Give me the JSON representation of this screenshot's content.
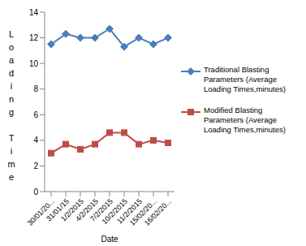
{
  "chart_data": {
    "type": "line",
    "x_label": "Date",
    "y_label": "Loading Time",
    "categories": [
      "30/01/20...",
      "31/01/15",
      "1/2/2015",
      "4/2/2015",
      "7/2/2015",
      "10/2/2015",
      "11/2/2015",
      "15/02/20...",
      "16/02/20..."
    ],
    "ylim": [
      0,
      14
    ],
    "yticks": [
      0,
      2,
      4,
      6,
      8,
      10,
      12,
      14
    ],
    "grid": false,
    "legend": "right",
    "series": [
      {
        "name": "Traditional Blasting Parameters (Average Loading Times,minutes)",
        "color": "#4a7ebb",
        "marker": "diamond",
        "values": [
          11.5,
          12.3,
          12.0,
          12.0,
          12.7,
          11.3,
          12.0,
          11.5,
          12.0
        ]
      },
      {
        "name": "Modified Blasting Parameters (Average Loading Times,minutes)",
        "color": "#be4b48",
        "marker": "square",
        "values": [
          3.0,
          3.7,
          3.3,
          3.7,
          4.6,
          4.6,
          3.7,
          4.0,
          3.8
        ]
      }
    ]
  }
}
